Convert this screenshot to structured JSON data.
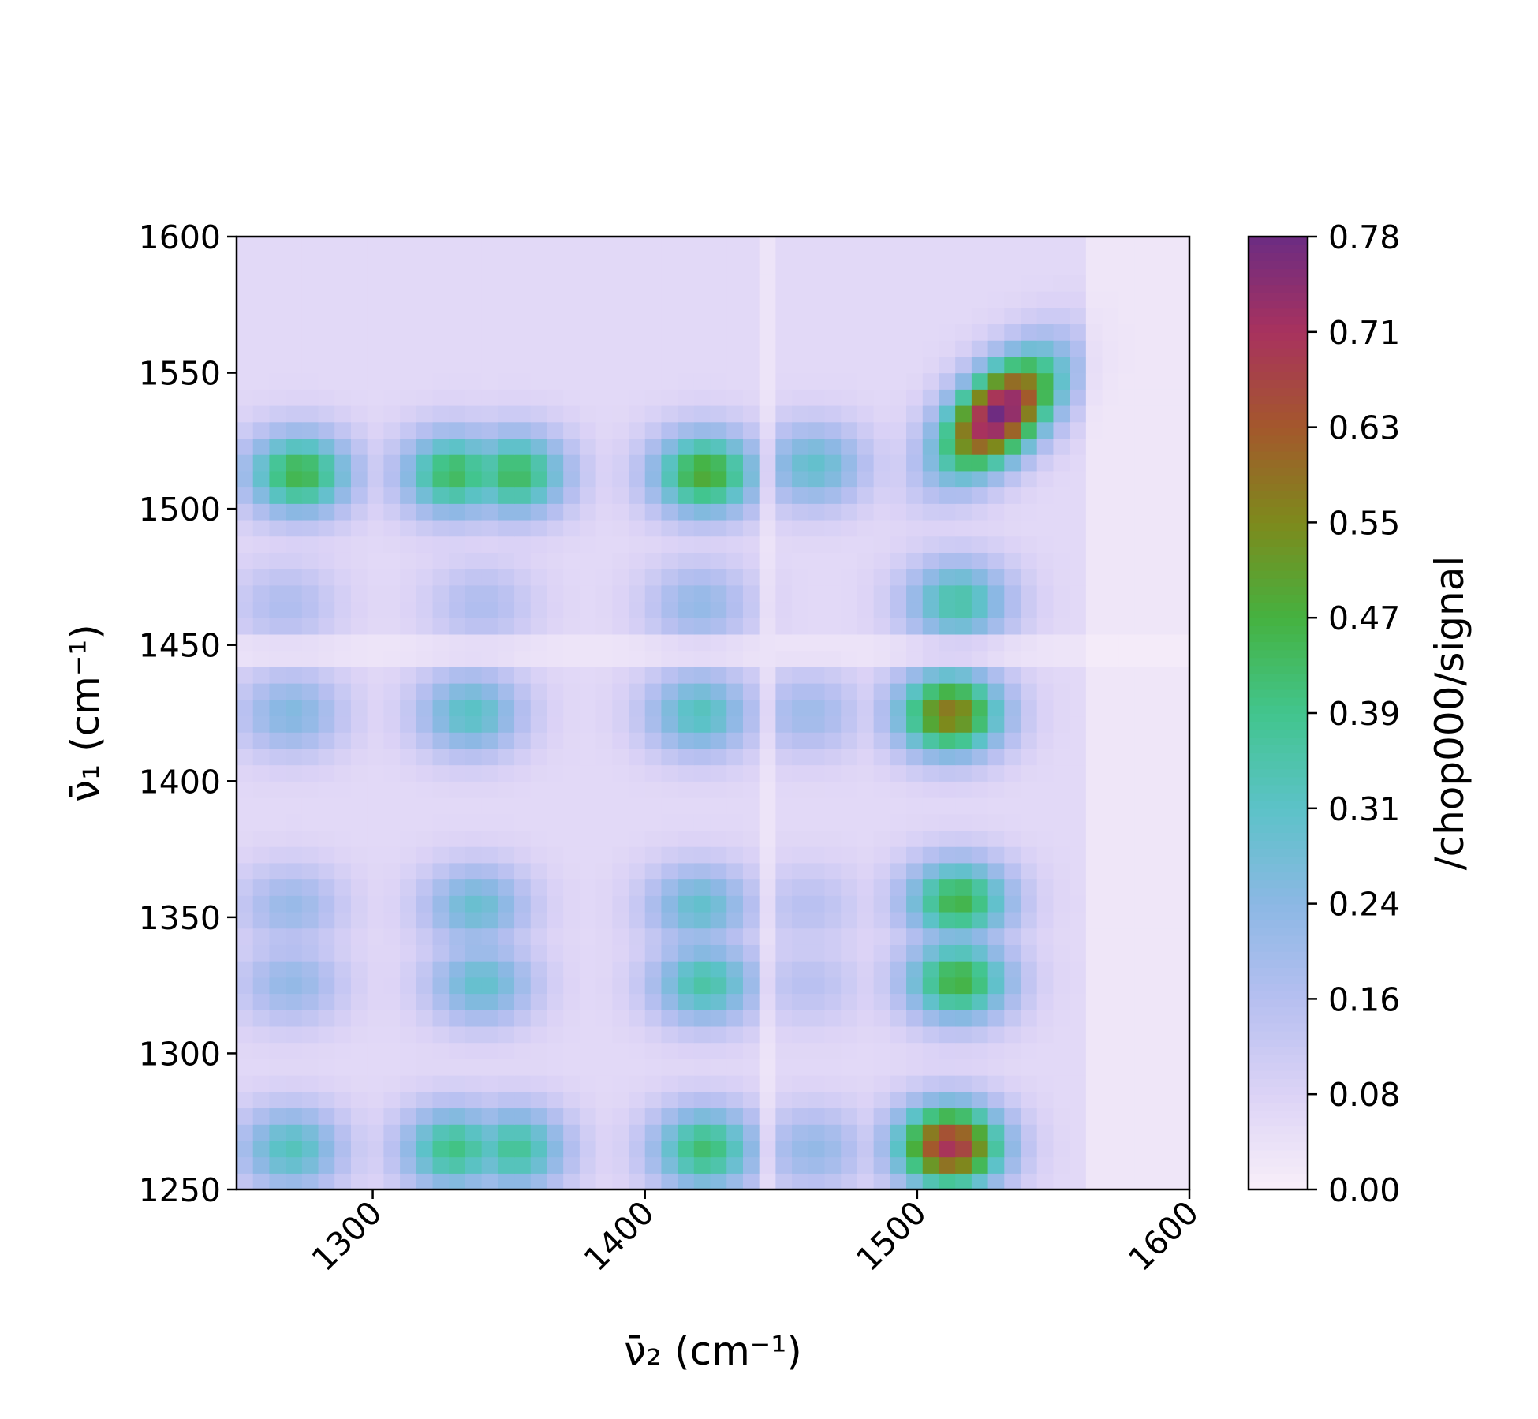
{
  "chart_data": {
    "type": "heatmap",
    "title": "",
    "xlabel": "ν̄₂ (cm⁻¹)",
    "ylabel": "ν̄₁ (cm⁻¹)",
    "colorbar_label": "/chop000/signal",
    "xlim": [
      1250,
      1600
    ],
    "ylim": [
      1250,
      1600
    ],
    "x_ticks": [
      "1300",
      "1400",
      "1500",
      "1600"
    ],
    "y_ticks": [
      "1250",
      "1300",
      "1350",
      "1400",
      "1450",
      "1500",
      "1550",
      "1600"
    ],
    "colorbar_ticks": [
      "0.00",
      "0.08",
      "0.16",
      "0.24",
      "0.31",
      "0.39",
      "0.47",
      "0.55",
      "0.63",
      "0.71",
      "0.78"
    ],
    "zlim": [
      0.0,
      0.78
    ],
    "grid_step": 6,
    "background": 0.06,
    "colormap": [
      "#f8eff9",
      "#dcd3f6",
      "#b6bff0",
      "#8cb8e4",
      "#5cc2c8",
      "#42c58e",
      "#45b240",
      "#7d8a1c",
      "#a4582c",
      "#a8325e",
      "#6c2c82"
    ],
    "peaks": [
      {
        "nu2": 1273,
        "nu1": 1513,
        "value": 0.46
      },
      {
        "nu2": 1330,
        "nu1": 1513,
        "value": 0.44
      },
      {
        "nu2": 1352,
        "nu1": 1513,
        "value": 0.44
      },
      {
        "nu2": 1422,
        "nu1": 1513,
        "value": 0.49
      },
      {
        "nu2": 1462,
        "nu1": 1516,
        "value": 0.3
      },
      {
        "nu2": 1530,
        "nu1": 1535,
        "value": 0.78
      },
      {
        "nu2": 1268,
        "nu1": 1465,
        "value": 0.17
      },
      {
        "nu2": 1340,
        "nu1": 1465,
        "value": 0.17
      },
      {
        "nu2": 1420,
        "nu1": 1465,
        "value": 0.22
      },
      {
        "nu2": 1515,
        "nu1": 1466,
        "value": 0.36
      },
      {
        "nu2": 1270,
        "nu1": 1425,
        "value": 0.25
      },
      {
        "nu2": 1336,
        "nu1": 1425,
        "value": 0.32
      },
      {
        "nu2": 1420,
        "nu1": 1425,
        "value": 0.33
      },
      {
        "nu2": 1460,
        "nu1": 1425,
        "value": 0.2
      },
      {
        "nu2": 1512,
        "nu1": 1425,
        "value": 0.58
      },
      {
        "nu2": 1270,
        "nu1": 1354,
        "value": 0.21
      },
      {
        "nu2": 1338,
        "nu1": 1354,
        "value": 0.29
      },
      {
        "nu2": 1420,
        "nu1": 1354,
        "value": 0.3
      },
      {
        "nu2": 1460,
        "nu1": 1354,
        "value": 0.15
      },
      {
        "nu2": 1515,
        "nu1": 1356,
        "value": 0.46
      },
      {
        "nu2": 1270,
        "nu1": 1326,
        "value": 0.22
      },
      {
        "nu2": 1340,
        "nu1": 1326,
        "value": 0.3
      },
      {
        "nu2": 1422,
        "nu1": 1326,
        "value": 0.36
      },
      {
        "nu2": 1460,
        "nu1": 1326,
        "value": 0.15
      },
      {
        "nu2": 1515,
        "nu1": 1327,
        "value": 0.47
      },
      {
        "nu2": 1270,
        "nu1": 1265,
        "value": 0.33
      },
      {
        "nu2": 1330,
        "nu1": 1265,
        "value": 0.4
      },
      {
        "nu2": 1352,
        "nu1": 1265,
        "value": 0.38
      },
      {
        "nu2": 1422,
        "nu1": 1265,
        "value": 0.42
      },
      {
        "nu2": 1462,
        "nu1": 1265,
        "value": 0.22
      },
      {
        "nu2": 1512,
        "nu1": 1266,
        "value": 0.7
      }
    ]
  }
}
